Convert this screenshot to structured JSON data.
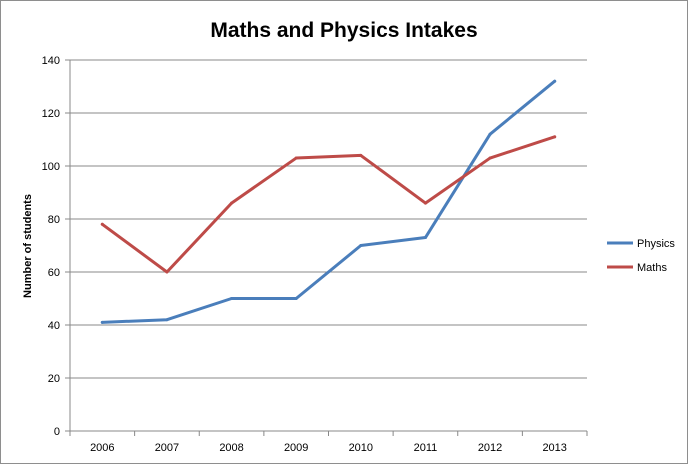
{
  "chart_data": {
    "type": "line",
    "title": "Maths and Physics Intakes",
    "xlabel": "",
    "ylabel": "Number of students",
    "categories": [
      "2006",
      "2007",
      "2008",
      "2009",
      "2010",
      "2011",
      "2012",
      "2013"
    ],
    "yticks": [
      "0",
      "20",
      "40",
      "60",
      "80",
      "100",
      "120",
      "140"
    ],
    "ylim": [
      0,
      140
    ],
    "grid": true,
    "legend_position": "right",
    "series": [
      {
        "name": "Physics",
        "color": "#4a7ebb",
        "values": [
          41,
          42,
          50,
          50,
          70,
          73,
          112,
          132
        ]
      },
      {
        "name": "Maths",
        "color": "#be4b48",
        "values": [
          78,
          60,
          86,
          103,
          104,
          86,
          103,
          111
        ]
      }
    ]
  }
}
